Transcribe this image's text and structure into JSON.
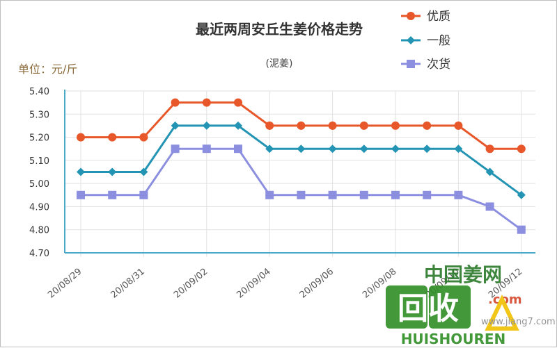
{
  "chart_data": {
    "type": "line",
    "title": "最近两周安丘生姜价格走势",
    "subtitle": "(泥姜)",
    "unit_label": "单位：元/斤",
    "ylim": [
      4.7,
      5.4
    ],
    "y_ticks": [
      "5.40",
      "5.30",
      "5.20",
      "5.10",
      "5.00",
      "4.90",
      "4.80",
      "4.70"
    ],
    "x": [
      "2020-08-29",
      "2020-08-30",
      "2020-08-31",
      "2020-09-01",
      "2020-09-02",
      "2020-09-03",
      "2020-09-04",
      "2020-09-05",
      "2020-09-06",
      "2020-09-07",
      "2020-09-08",
      "2020-09-09",
      "2020-09-10",
      "2020-09-11",
      "2020-09-12"
    ],
    "x_tick_labels": [
      "20/08/29",
      "20/08/31",
      "20/09/02",
      "20/09/04",
      "20/09/06",
      "20/09/08",
      "20/09/10",
      "20/09/12"
    ],
    "x_tick_dates": [
      "2020-08-29",
      "2020-08-31",
      "2020-09-02",
      "2020-09-04",
      "2020-09-06",
      "2020-09-08",
      "2020-09-10",
      "2020-09-12"
    ],
    "grid": true,
    "legend_position": "top-right",
    "series": [
      {
        "name": "优质",
        "color": "#e8572a",
        "marker": "circle",
        "values": [
          5.2,
          5.2,
          5.2,
          5.35,
          5.35,
          5.35,
          5.25,
          5.25,
          5.25,
          5.25,
          5.25,
          5.25,
          5.25,
          5.15,
          5.15
        ]
      },
      {
        "name": "一般",
        "color": "#2394b3",
        "marker": "diamond",
        "values": [
          5.05,
          5.05,
          5.05,
          5.25,
          5.25,
          5.25,
          5.15,
          5.15,
          5.15,
          5.15,
          5.15,
          5.15,
          5.15,
          5.05,
          4.95
        ]
      },
      {
        "name": "次货",
        "color": "#8c8fe0",
        "marker": "square",
        "values": [
          4.95,
          4.95,
          4.95,
          5.15,
          5.15,
          5.15,
          4.95,
          4.95,
          4.95,
          4.95,
          4.95,
          4.95,
          4.95,
          4.9,
          4.8
        ]
      }
    ]
  },
  "watermark": {
    "site_name": "中国姜网",
    "site_domain": ".com",
    "logo_text": "回收",
    "logo_subtext": "HUISHOUREN",
    "url_text": "www.jiang7.com"
  }
}
